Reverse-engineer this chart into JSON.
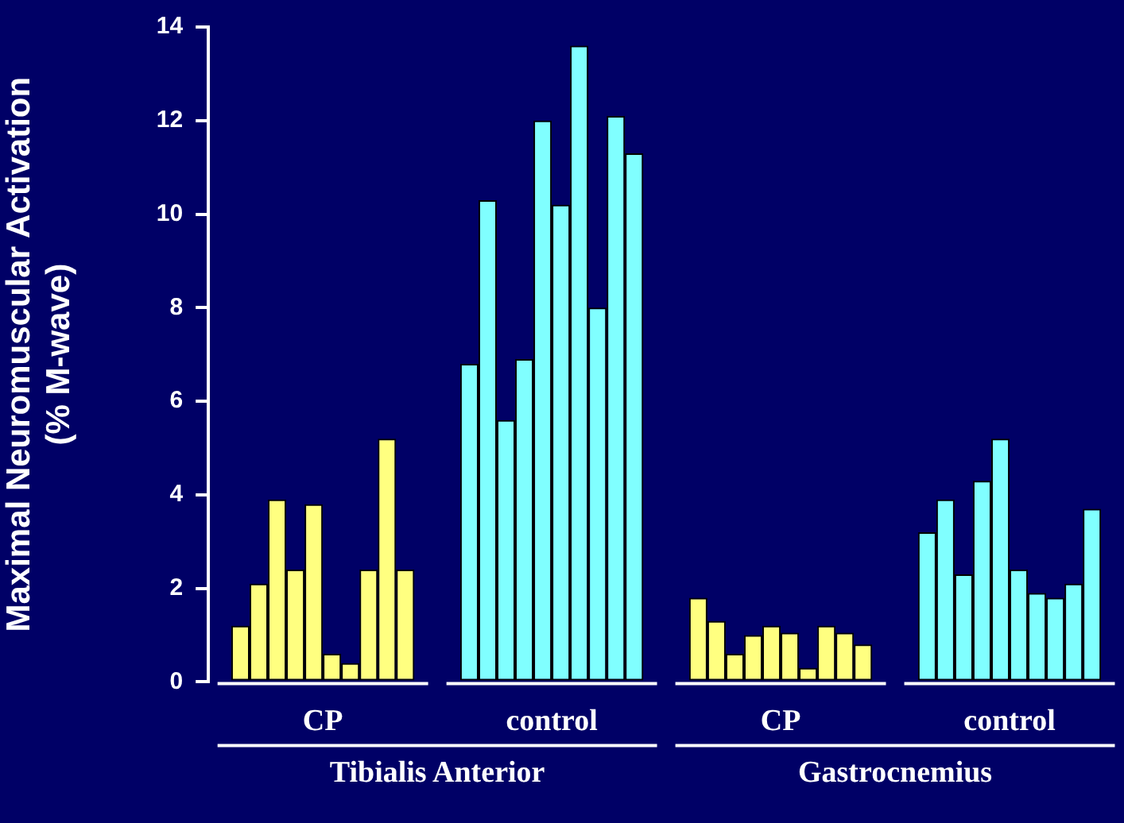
{
  "chart_data": {
    "type": "bar",
    "ylabel": "Maximal Neuromuscular Activation\n(% M-wave)",
    "categories": [
      "CP",
      "control",
      "CP",
      "control"
    ],
    "series": [
      {
        "colors": [
          "#ffff80",
          "#80ffff",
          "#ffff80",
          "#80ffff"
        ],
        "values": [
          1.2,
          6.8,
          1.8,
          3.2
        ]
      },
      {
        "colors": [
          "#ffff80",
          "#80ffff",
          "#ffff80",
          "#80ffff"
        ],
        "values": [
          2.1,
          10.3,
          1.3,
          3.9
        ]
      },
      {
        "colors": [
          "#ffff80",
          "#80ffff",
          "#ffff80",
          "#80ffff"
        ],
        "values": [
          3.9,
          5.6,
          0.6,
          2.3
        ]
      },
      {
        "colors": [
          "#ffff80",
          "#80ffff",
          "#ffff80",
          "#80ffff"
        ],
        "values": [
          2.4,
          6.9,
          1.0,
          4.3
        ]
      },
      {
        "colors": [
          "#ffff80",
          "#80ffff",
          "#ffff80",
          "#80ffff"
        ],
        "values": [
          3.8,
          12.0,
          1.2,
          5.2
        ]
      },
      {
        "colors": [
          "#ffff80",
          "#80ffff",
          "#ffff80",
          "#80ffff"
        ],
        "values": [
          0.6,
          10.2,
          1.05,
          2.4
        ]
      },
      {
        "colors": [
          "#ffff80",
          "#80ffff",
          "#ffff80",
          "#80ffff"
        ],
        "values": [
          0.4,
          13.6,
          0.3,
          1.9
        ]
      },
      {
        "colors": [
          "#ffff80",
          "#80ffff",
          "#ffff80",
          "#80ffff"
        ],
        "values": [
          2.4,
          8.0,
          1.2,
          1.8
        ]
      },
      {
        "colors": [
          "#ffff80",
          "#80ffff",
          "#ffff80",
          "#80ffff"
        ],
        "values": [
          5.2,
          12.1,
          1.05,
          2.1
        ]
      },
      {
        "colors": [
          "#ffff80",
          "#80ffff",
          "#ffff80",
          "#80ffff"
        ],
        "values": [
          2.4,
          11.3,
          0.8,
          3.7
        ]
      }
    ],
    "annotations": [
      "Tibialis Anterior",
      "Gastrocnemius"
    ],
    "ylim": [
      0,
      14
    ],
    "yticks": [
      0,
      2,
      4,
      6,
      8,
      10,
      12,
      14
    ],
    "grid": false,
    "legend": false
  }
}
